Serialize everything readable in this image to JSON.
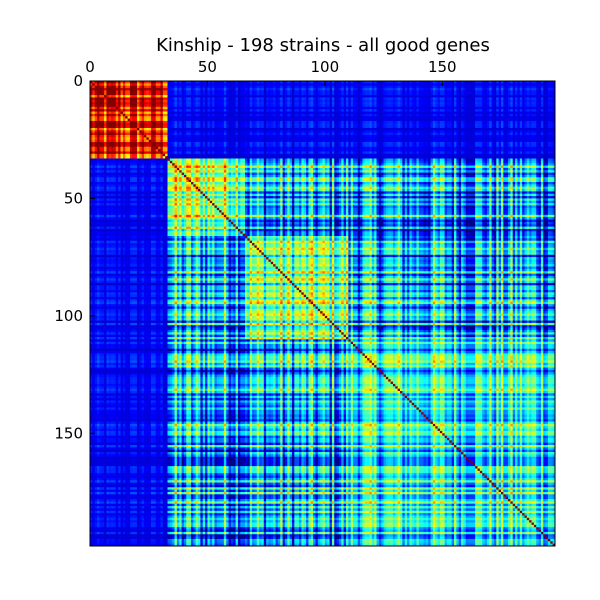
{
  "chart_data": {
    "type": "heatmap",
    "title": "Kinship - 198 strains - all good genes",
    "n": 198,
    "x_axis_position": "top",
    "x_ticks": [
      0,
      50,
      100,
      150
    ],
    "y_ticks": [
      0,
      50,
      100,
      150
    ],
    "x_tick_labels": [
      "0",
      "50",
      "100",
      "150"
    ],
    "y_tick_labels": [
      "0",
      "50",
      "100",
      "150"
    ],
    "xlim": [
      0,
      198
    ],
    "ylim": [
      198,
      0
    ],
    "colormap": "jet",
    "colormap_stops": [
      "#00008f",
      "#0000ff",
      "#00ffff",
      "#ffff00",
      "#ff0000",
      "#800000"
    ],
    "groups": [
      {
        "start": 0,
        "end": 33,
        "base_level": 0.85
      },
      {
        "start": 33,
        "end": 66,
        "base_level": 0.55
      },
      {
        "start": 66,
        "end": 110,
        "base_level": 0.48
      },
      {
        "start": 110,
        "end": 198,
        "base_level": 0.4
      }
    ],
    "between_group_levels": {
      "block1_vs_others": 0.08,
      "others_vs_others": 0.3
    },
    "diagonal_level": 1.0,
    "grid": false
  }
}
